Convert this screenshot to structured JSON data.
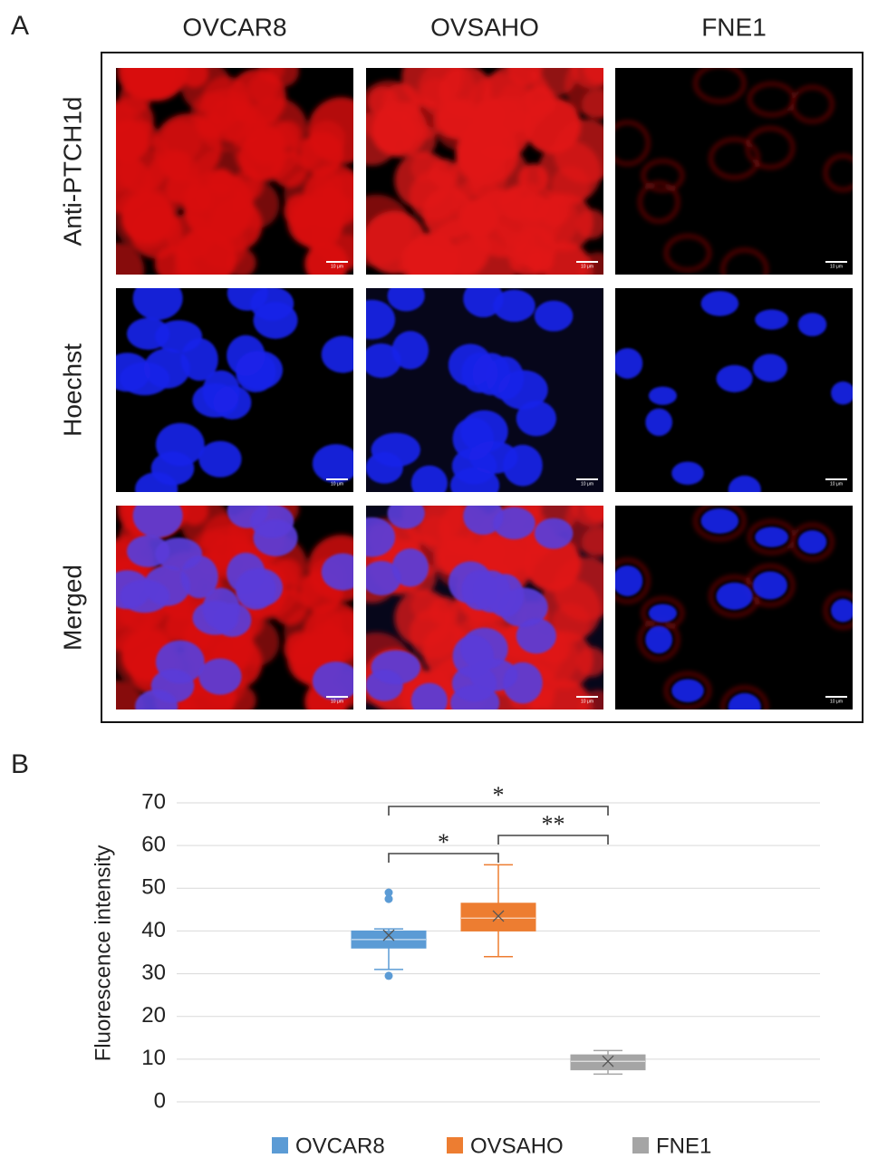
{
  "panel_a": {
    "label": "A",
    "columns": [
      "OVCAR8",
      "OVSAHO",
      "FNE1"
    ],
    "rows": [
      "Anti-PTCH1d",
      "Hoechst",
      "Merged"
    ],
    "scale_bar": "10 μm"
  },
  "chart_data": {
    "type": "box",
    "label": "B",
    "ylabel": "Fluorescence intensity",
    "ylim": [
      0,
      70
    ],
    "yticks": [
      0,
      10,
      20,
      30,
      40,
      50,
      60,
      70
    ],
    "grid": true,
    "legend": "bottom",
    "series": [
      {
        "name": "OVCAR8",
        "color": "#5b9bd5",
        "min": 31,
        "q1": 36,
        "median": 38,
        "q3": 40,
        "max": 40.5,
        "mean": 39,
        "outliers": [
          49,
          47.5,
          29.5
        ]
      },
      {
        "name": "OVSAHO",
        "color": "#ed7d31",
        "min": 34,
        "q1": 40,
        "median": 43,
        "q3": 46.5,
        "max": 55.5,
        "mean": 43.5,
        "outliers": []
      },
      {
        "name": "FNE1",
        "color": "#a5a5a5",
        "min": 6.5,
        "q1": 7.5,
        "median": 9.5,
        "q3": 11,
        "max": 12,
        "mean": 9.5,
        "outliers": []
      }
    ],
    "annotations": [
      {
        "text": "*",
        "groups": [
          "OVCAR8",
          "OVSAHO"
        ]
      },
      {
        "text": "**",
        "groups": [
          "OVSAHO",
          "FNE1"
        ]
      },
      {
        "text": "*",
        "groups": [
          "OVCAR8",
          "FNE1"
        ]
      }
    ]
  }
}
